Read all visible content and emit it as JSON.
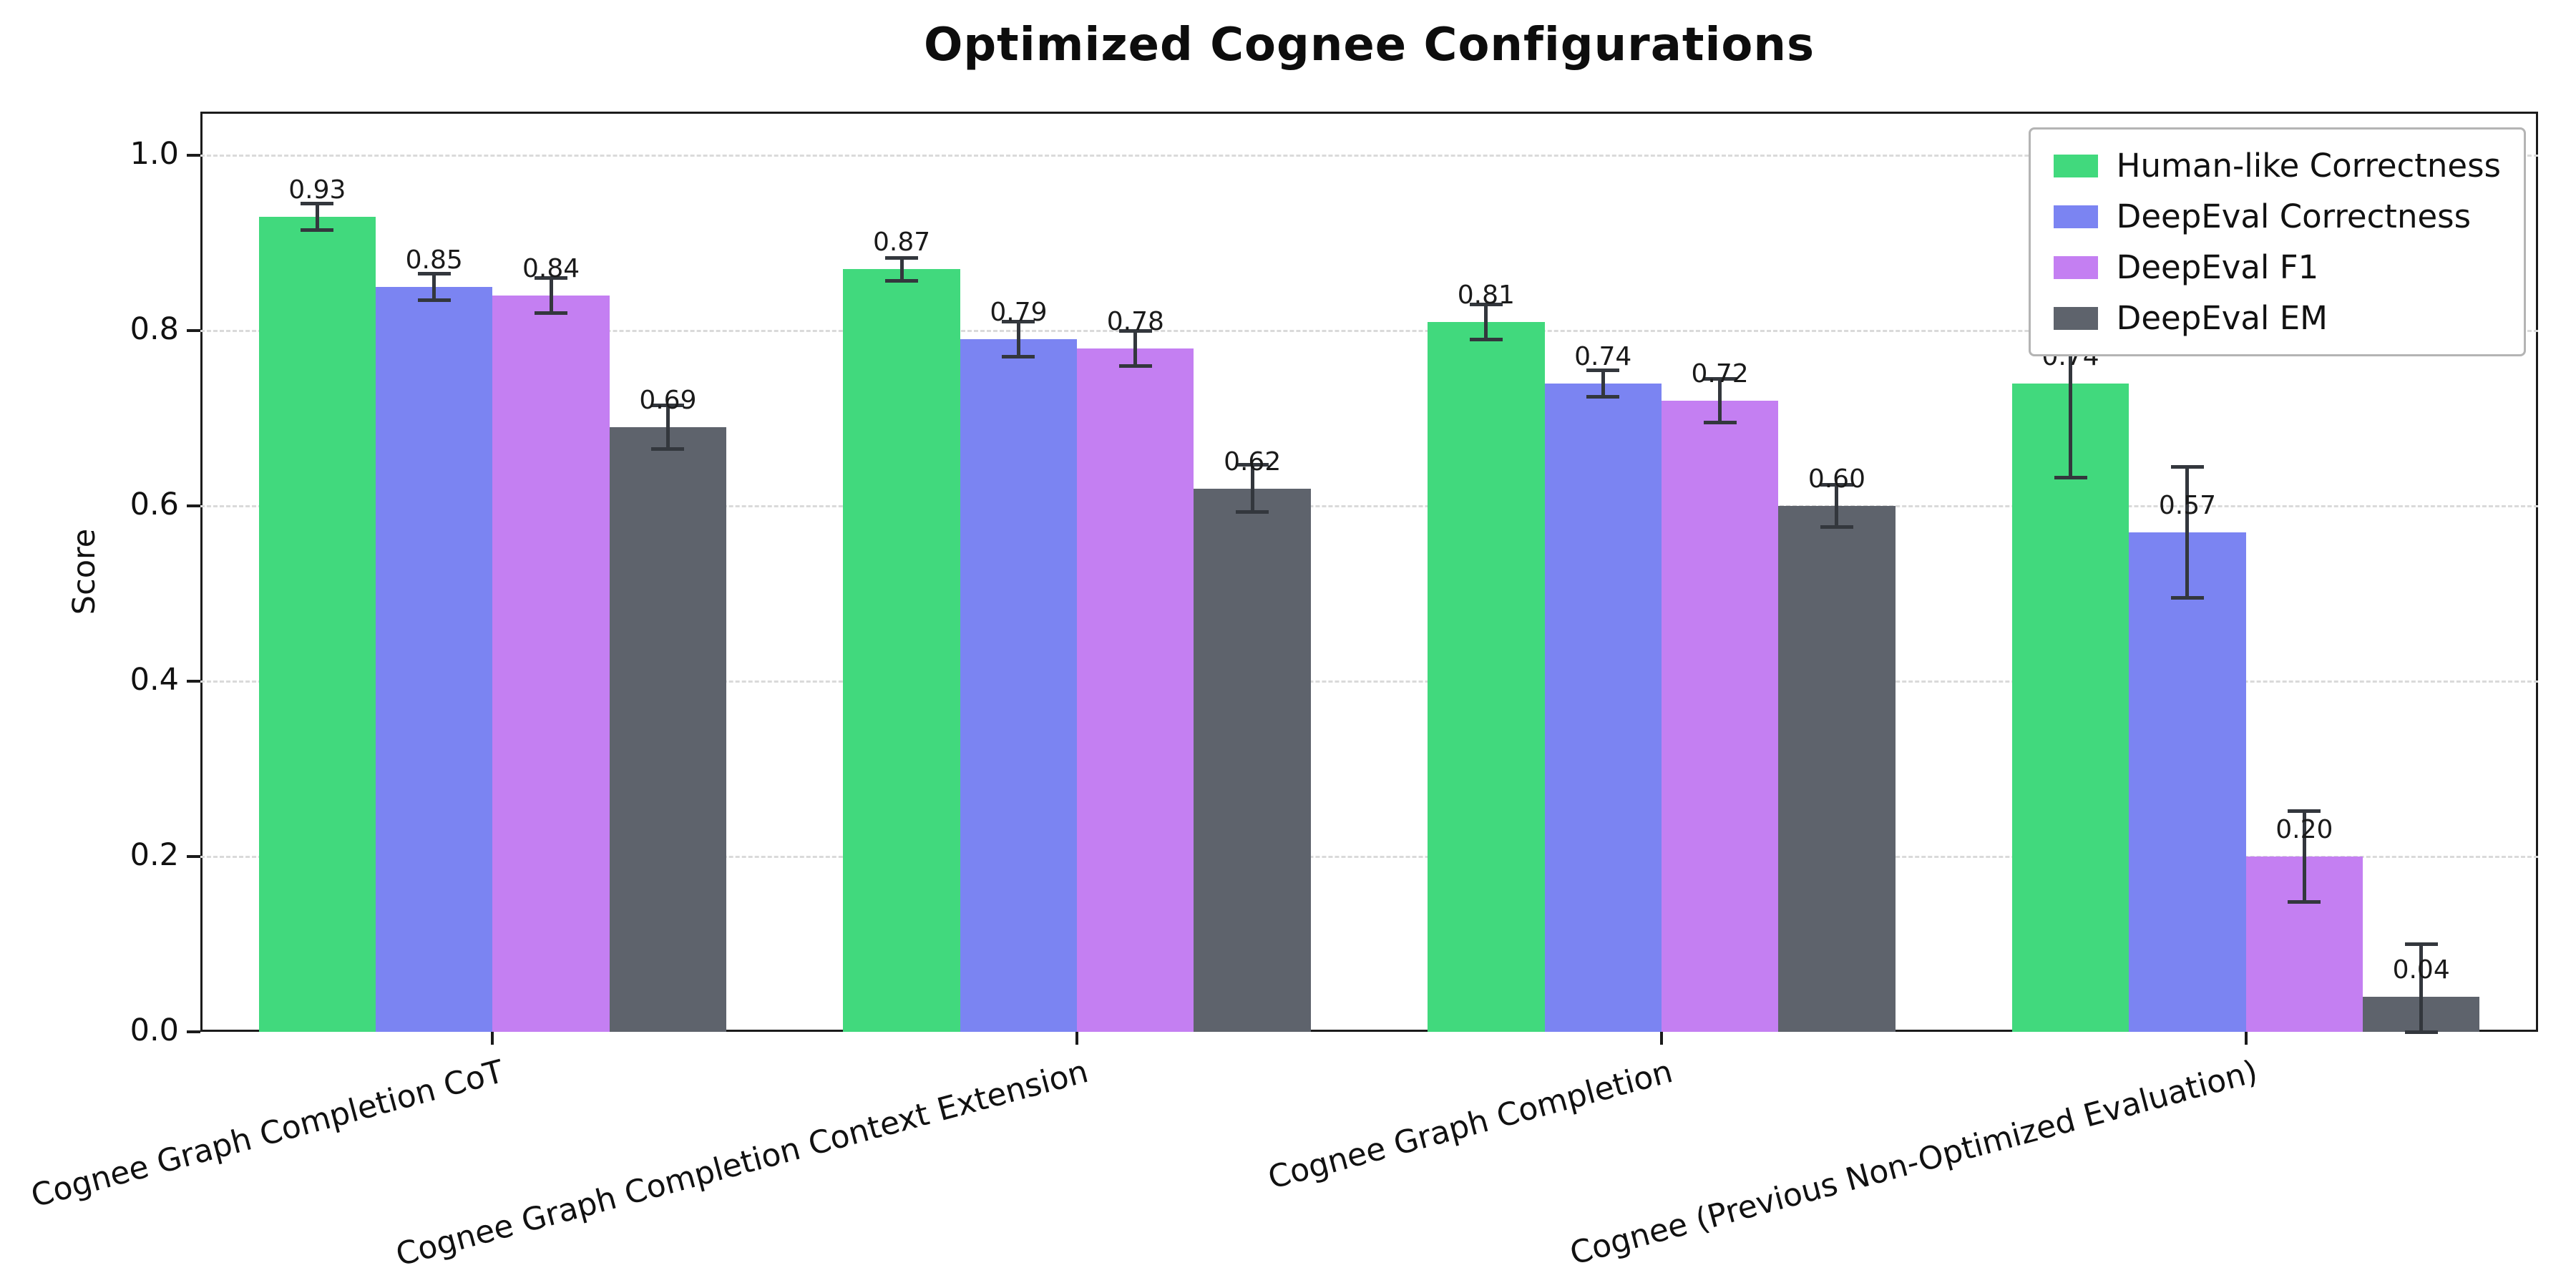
{
  "chart_data": {
    "type": "bar",
    "title": "Optimized Cognee Configurations",
    "xlabel": "",
    "ylabel": "Score",
    "ylim": [
      0,
      1.05
    ],
    "yticks": [
      0.0,
      0.2,
      0.4,
      0.6,
      0.8,
      1.0
    ],
    "grid": "horizontal-dashed",
    "legend_position": "upper-right",
    "error_bars": true,
    "categories": [
      "Cognee Graph Completion CoT",
      "Cognee Graph Completion Context Extension",
      "Cognee Graph Completion",
      "Cognee (Previous Non-Optimized Evaluation)"
    ],
    "series": [
      {
        "name": "Human-like Correctness",
        "color": "#41d97d",
        "values": [
          0.93,
          0.87,
          0.81,
          0.74
        ],
        "errors": [
          0.015,
          0.013,
          0.02,
          0.108
        ],
        "labels": [
          "0.93",
          "0.87",
          "0.81",
          "0.74"
        ]
      },
      {
        "name": "DeepEval Correctness",
        "color": "#7b84f2",
        "values": [
          0.85,
          0.79,
          0.74,
          0.57
        ],
        "errors": [
          0.015,
          0.02,
          0.015,
          0.075
        ],
        "labels": [
          "0.85",
          "0.79",
          "0.74",
          "0.57"
        ]
      },
      {
        "name": "DeepEval F1",
        "color": "#c47ff2",
        "values": [
          0.84,
          0.78,
          0.72,
          0.2
        ],
        "errors": [
          0.02,
          0.02,
          0.025,
          0.052
        ],
        "labels": [
          "0.84",
          "0.78",
          "0.72",
          "0.20"
        ]
      },
      {
        "name": "DeepEval EM",
        "color": "#5e636c",
        "values": [
          0.69,
          0.62,
          0.6,
          0.04
        ],
        "errors": [
          0.025,
          0.027,
          0.024,
          0.06
        ],
        "labels": [
          "0.69",
          "0.62",
          "0.60",
          "0.04"
        ]
      }
    ]
  }
}
